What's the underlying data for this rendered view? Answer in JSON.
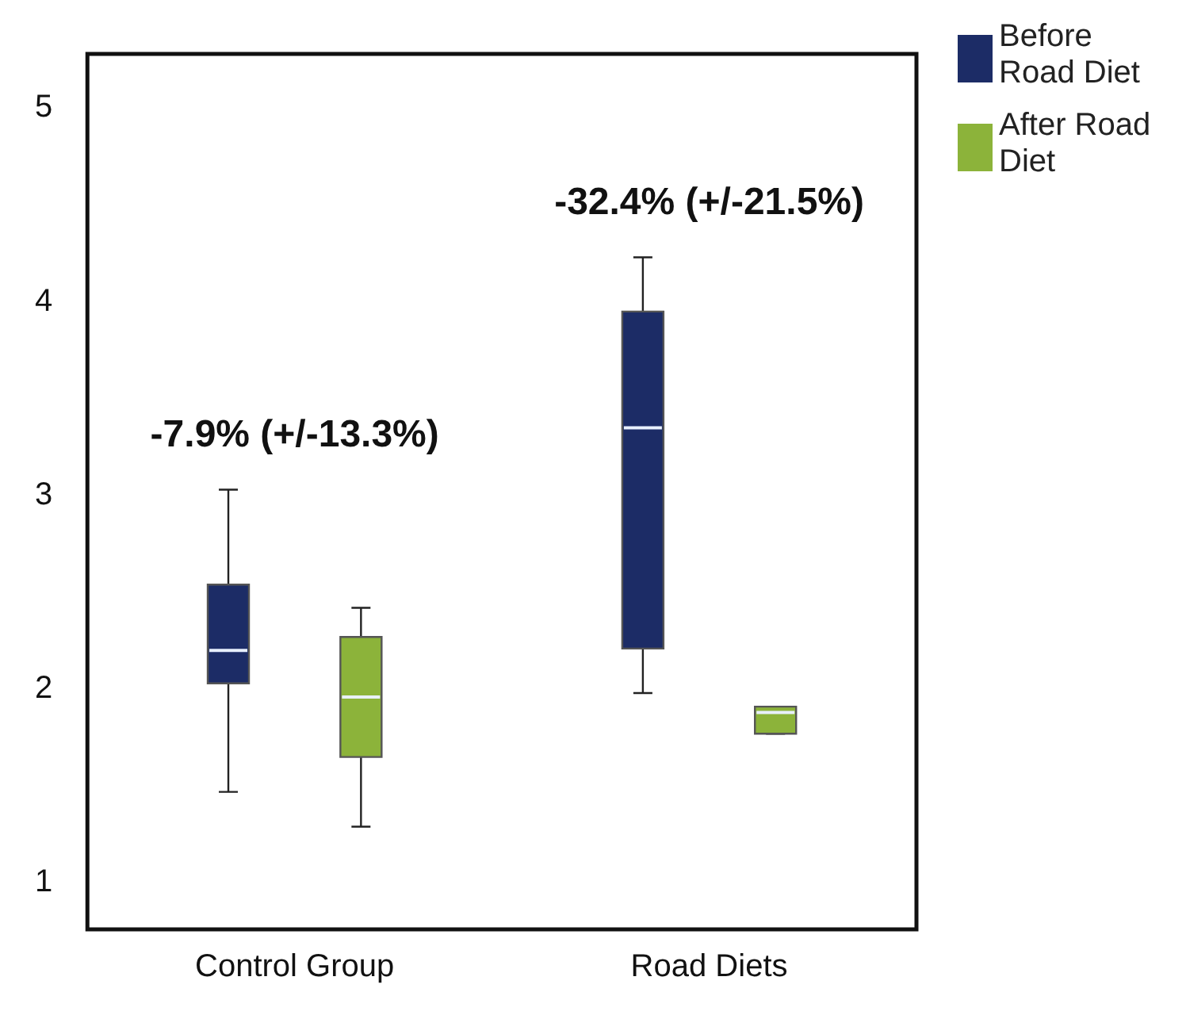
{
  "chart_data": {
    "type": "box",
    "categories": [
      "Control Group",
      "Road Diets"
    ],
    "series": [
      {
        "name": "Before Road Diet",
        "color": "#1c2c66",
        "boxes": [
          {
            "low": 1.47,
            "q1": 2.03,
            "median": 2.2,
            "q3": 2.54,
            "high": 3.03
          },
          {
            "low": 1.98,
            "q1": 2.21,
            "median": 3.35,
            "q3": 3.95,
            "high": 4.23
          }
        ]
      },
      {
        "name": "After Road Diet",
        "color": "#8cb33a",
        "boxes": [
          {
            "low": 1.29,
            "q1": 1.65,
            "median": 1.96,
            "q3": 2.27,
            "high": 2.42
          },
          {
            "low": 1.77,
            "q1": 1.77,
            "median": 1.88,
            "q3": 1.91,
            "high": 1.91
          }
        ]
      }
    ],
    "ylim": [
      0.76,
      5.28
    ],
    "yticks": [
      1,
      2,
      3,
      4,
      5
    ],
    "grid": false,
    "legend": "top right",
    "annotations": [
      "-7.9% (+/-13.3%)",
      "-32.4% (+/-21.5%)"
    ]
  }
}
